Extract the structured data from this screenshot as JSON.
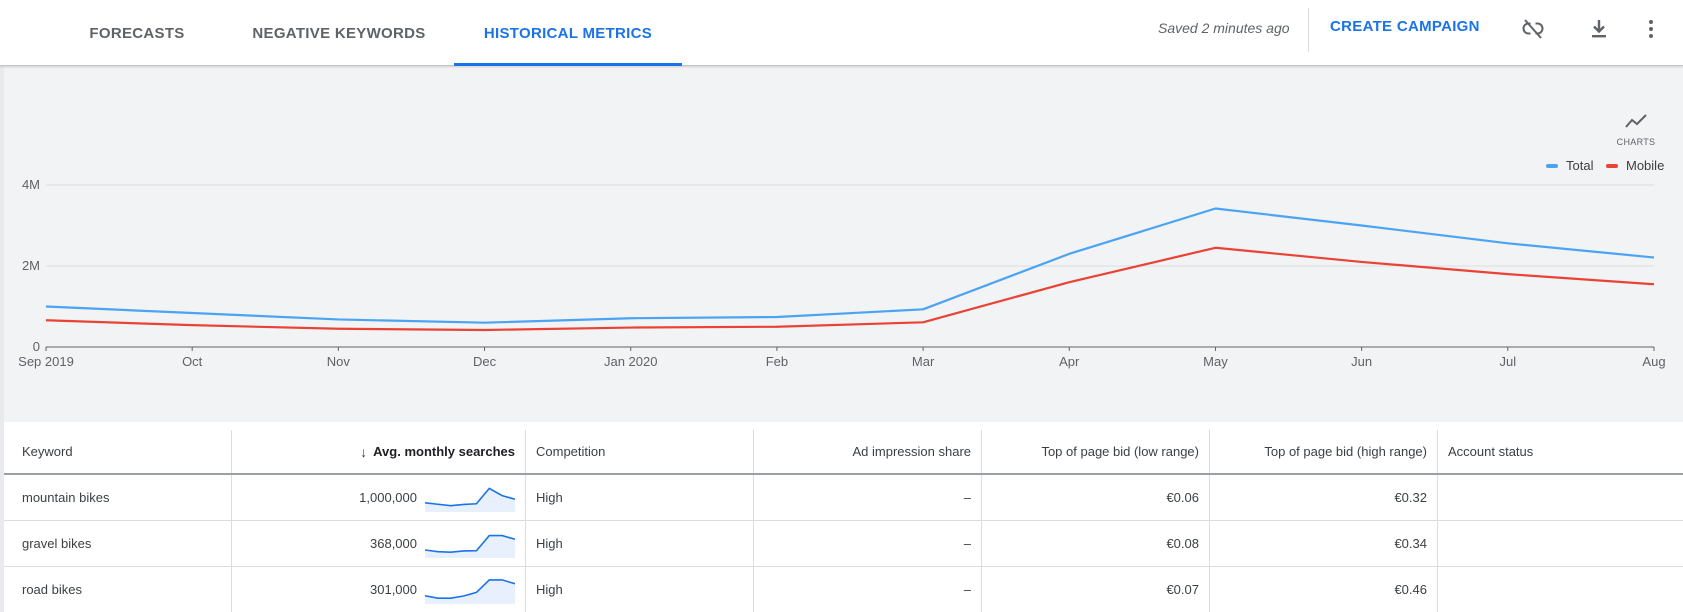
{
  "tabs": [
    {
      "label": "FORECASTS",
      "active": false
    },
    {
      "label": "NEGATIVE KEYWORDS",
      "active": false
    },
    {
      "label": "HISTORICAL METRICS",
      "active": true
    }
  ],
  "toolbar": {
    "saved_text": "Saved 2 minutes ago",
    "create_campaign_label": "CREATE CAMPAIGN",
    "icons": [
      "unlink-icon",
      "download-icon",
      "more-vert-icon"
    ]
  },
  "charts_toggle": {
    "label": "CHARTS",
    "icon": "line-chart-icon"
  },
  "colors": {
    "total": "#4ba3f3",
    "mobile": "#ea4335",
    "accent": "#1a73e8"
  },
  "chart_data": {
    "type": "line",
    "x": [
      "Sep 2019",
      "Oct",
      "Nov",
      "Dec",
      "Jan 2020",
      "Feb",
      "Mar",
      "Apr",
      "May",
      "Jun",
      "Jul",
      "Aug"
    ],
    "series": [
      {
        "name": "Total",
        "values": [
          1000000,
          840000,
          680000,
          600000,
          710000,
          740000,
          930000,
          2300000,
          3420000,
          3000000,
          2560000,
          2210000
        ]
      },
      {
        "name": "Mobile",
        "values": [
          660000,
          540000,
          450000,
          420000,
          480000,
          500000,
          610000,
          1600000,
          2450000,
          2100000,
          1800000,
          1550000
        ]
      }
    ],
    "y_ticks": [
      "0",
      "2M",
      "4M"
    ],
    "y_tick_values": [
      0,
      2000000,
      4000000
    ],
    "ylim": [
      0,
      4000000
    ],
    "legend_position": "top-right",
    "grid": true
  },
  "table": {
    "headers": {
      "keyword": "Keyword",
      "avg_monthly_searches": "Avg. monthly searches",
      "competition": "Competition",
      "ad_impression_share": "Ad impression share",
      "top_bid_low": "Top of page bid (low range)",
      "top_bid_high": "Top of page bid (high range)",
      "account_status": "Account status"
    },
    "rows": [
      {
        "keyword": "mountain bikes",
        "searches": "1,000,000",
        "competition": "High",
        "impression_share": "–",
        "bid_low": "€0.06",
        "bid_high": "€0.32",
        "account_status": "",
        "trend": [
          3,
          2.4,
          1.8,
          2.3,
          2.6,
          9,
          6,
          4.5
        ]
      },
      {
        "keyword": "gravel bikes",
        "searches": "368,000",
        "competition": "High",
        "impression_share": "–",
        "bid_low": "€0.08",
        "bid_high": "€0.34",
        "account_status": "",
        "trend": [
          2.5,
          1.8,
          1.6,
          2.1,
          2.2,
          8.5,
          8.5,
          7
        ]
      },
      {
        "keyword": "road bikes",
        "searches": "301,000",
        "competition": "High",
        "impression_share": "–",
        "bid_low": "€0.07",
        "bid_high": "€0.46",
        "account_status": "",
        "trend": [
          2.6,
          1.6,
          1.6,
          2.5,
          4,
          9.2,
          9.2,
          7.6
        ]
      }
    ]
  }
}
